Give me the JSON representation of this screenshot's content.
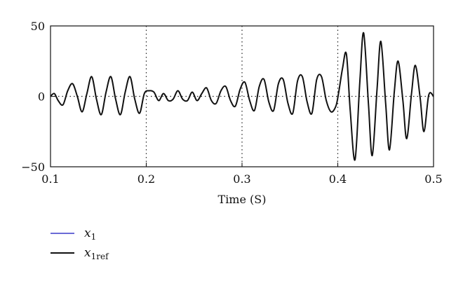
{
  "chart_data": {
    "type": "line",
    "title": "",
    "xlabel": "Time (S)",
    "ylabel": "",
    "xlim": [
      0.1,
      0.5
    ],
    "ylim": [
      -50,
      50
    ],
    "x_ticks": [
      "0.1",
      "0.2",
      "0.3",
      "0.4",
      "0.5"
    ],
    "y_ticks": [
      "50",
      "0",
      "−50"
    ],
    "grid": "dotted vertical lines at 0.2, 0.3, 0.4 and dotted horizontal line at 0",
    "legend_position": "bottom-left, below plot",
    "series": [
      {
        "name": "x",
        "subscript": "1",
        "color": "#3a3ac8",
        "x": [],
        "y": []
      },
      {
        "name": "x",
        "subscript": "1ref",
        "color": "#111111",
        "x": [
          0.1,
          0.104,
          0.108,
          0.113,
          0.118,
          0.123,
          0.128,
          0.133,
          0.138,
          0.143,
          0.148,
          0.153,
          0.158,
          0.163,
          0.168,
          0.173,
          0.178,
          0.183,
          0.188,
          0.193,
          0.198,
          0.203,
          0.208,
          0.213,
          0.218,
          0.223,
          0.228,
          0.233,
          0.238,
          0.243,
          0.248,
          0.253,
          0.258,
          0.263,
          0.268,
          0.273,
          0.278,
          0.283,
          0.288,
          0.293,
          0.298,
          0.303,
          0.308,
          0.313,
          0.318,
          0.323,
          0.328,
          0.333,
          0.338,
          0.343,
          0.348,
          0.353,
          0.358,
          0.363,
          0.368,
          0.373,
          0.378,
          0.383,
          0.388,
          0.393,
          0.398,
          0.401,
          0.405,
          0.409,
          0.413,
          0.418,
          0.423,
          0.427,
          0.432,
          0.436,
          0.441,
          0.445,
          0.45,
          0.454,
          0.459,
          0.463,
          0.468,
          0.472,
          0.477,
          0.481,
          0.486,
          0.49,
          0.495,
          0.5
        ],
        "y": [
          0,
          2,
          -3,
          -6,
          4,
          9,
          0,
          -11,
          2,
          14,
          -2,
          -13,
          3,
          14,
          -2,
          -13,
          3,
          14,
          -2,
          -12,
          2,
          4,
          3,
          -3,
          2,
          -3,
          -2,
          4,
          -2,
          -3,
          3,
          -3,
          2,
          6,
          -3,
          -5,
          4,
          7,
          -3,
          -7,
          5,
          10,
          -3,
          -10,
          7,
          12,
          -4,
          -10,
          9,
          12,
          -5,
          -12,
          11,
          14,
          -4,
          -12,
          12,
          14,
          -3,
          -11,
          -7,
          3,
          20,
          30,
          -10,
          -45,
          10,
          45,
          -5,
          -42,
          5,
          39,
          -5,
          -38,
          3,
          25,
          -3,
          -30,
          2,
          22,
          -1,
          -25,
          1,
          0
        ]
      }
    ]
  }
}
